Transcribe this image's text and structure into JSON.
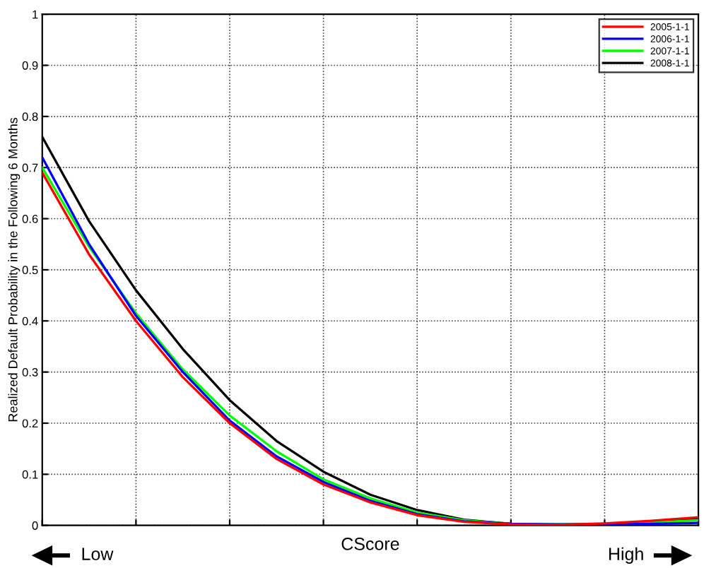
{
  "chart_data": {
    "type": "line",
    "xlabel": "CScore",
    "ylabel": "Realized Default Probability in the Following 6 Months",
    "annotations": [
      "Low",
      "High"
    ],
    "categories": [
      null,
      null,
      null,
      null,
      null,
      null,
      null,
      null,
      null,
      null,
      null,
      null,
      null,
      null,
      null
    ],
    "series": [
      {
        "name": "2005-1-1",
        "color": "#ff0000",
        "values": [
          0.69,
          0.53,
          0.4,
          0.29,
          0.2,
          0.13,
          0.08,
          0.045,
          0.02,
          0.007,
          0.002,
          0.001,
          0.004,
          0.009,
          0.016
        ]
      },
      {
        "name": "2006-1-1",
        "color": "#0000ff",
        "values": [
          0.72,
          0.55,
          0.41,
          0.3,
          0.205,
          0.135,
          0.085,
          0.048,
          0.022,
          0.008,
          0.003,
          0.002,
          0.002,
          0.003,
          0.005
        ]
      },
      {
        "name": "2007-1-1",
        "color": "#00ff00",
        "values": [
          0.7,
          0.545,
          0.415,
          0.305,
          0.215,
          0.145,
          0.09,
          0.053,
          0.025,
          0.01,
          0.003,
          0.002,
          0.003,
          0.006,
          0.01
        ]
      },
      {
        "name": "2008-1-1",
        "color": "#000000",
        "values": [
          0.76,
          0.595,
          0.46,
          0.345,
          0.245,
          0.165,
          0.105,
          0.06,
          0.03,
          0.011,
          0.003,
          0.001,
          0.002,
          0.006,
          0.012
        ]
      }
    ],
    "ylim": [
      0,
      1
    ],
    "yticks": [
      0,
      0.1,
      0.2,
      0.3,
      0.4,
      0.5,
      0.6,
      0.7,
      0.8,
      0.9,
      1
    ],
    "tick_labels": "y",
    "grid": true,
    "legend": "top right",
    "line_style": "solid",
    "marker": "none"
  }
}
